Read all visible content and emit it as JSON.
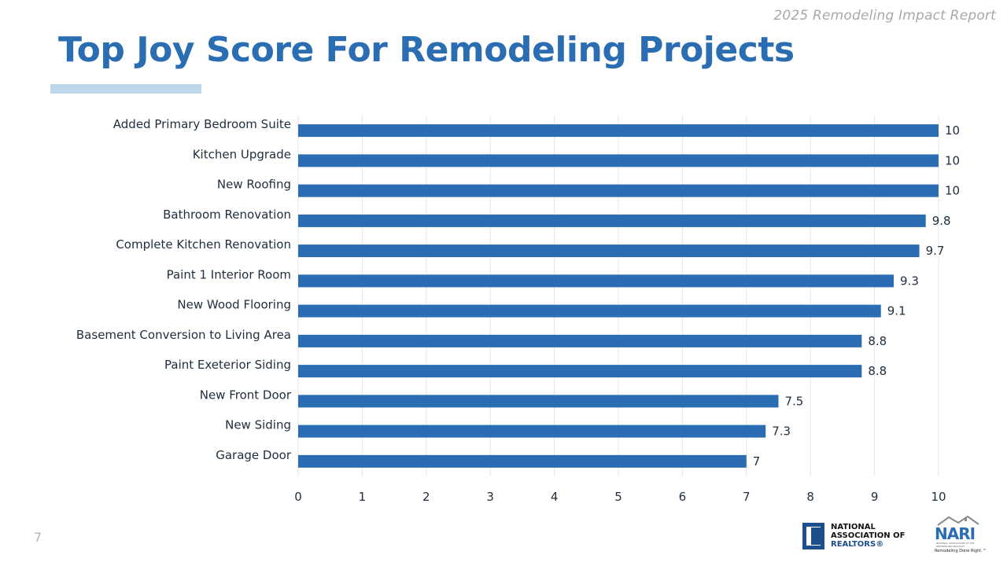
{
  "report_tag": "2025 Remodeling Impact Report",
  "title": "Top Joy Score For Remodeling Projects",
  "page_number": "7",
  "logos": {
    "nar": {
      "line1": "NATIONAL",
      "line2": "ASSOCIATION OF",
      "line3": "REALTORS®"
    },
    "nari": {
      "word": "NARI",
      "subtext": "NATIONAL ASSOCIATION OF THE REMODELING INDUSTRY",
      "tagline": "Remodeling Done Right.™"
    }
  },
  "colors": {
    "bar": "#2a6db3",
    "title": "#2a6db3",
    "underline": "#bcd8ea",
    "grid": "#e6e6e6"
  },
  "chart_data": {
    "type": "bar",
    "orientation": "horizontal",
    "title": "Top Joy Score For Remodeling Projects",
    "xlabel": "",
    "ylabel": "",
    "xlim": [
      0,
      10
    ],
    "x_ticks": [
      "0",
      "1",
      "2",
      "3",
      "4",
      "5",
      "6",
      "7",
      "8",
      "9",
      "10"
    ],
    "grid": true,
    "legend": "none",
    "categories": [
      "Added Primary Bedroom Suite",
      "Kitchen Upgrade",
      "New Roofing",
      "Bathroom Renovation",
      "Complete Kitchen Renovation",
      "Paint 1 Interior Room",
      "New Wood Flooring",
      "Basement Conversion to Living Area",
      "Paint Exeterior Siding",
      "New Front Door",
      "New Siding",
      "Garage Door"
    ],
    "values": [
      10,
      10,
      10,
      9.8,
      9.7,
      9.3,
      9.1,
      8.8,
      8.8,
      7.5,
      7.3,
      7
    ],
    "data_labels": [
      "10",
      "10",
      "10",
      "9.8",
      "9.7",
      "9.3",
      "9.1",
      "8.8",
      "8.8",
      "7.5",
      "7.3",
      "7"
    ]
  }
}
